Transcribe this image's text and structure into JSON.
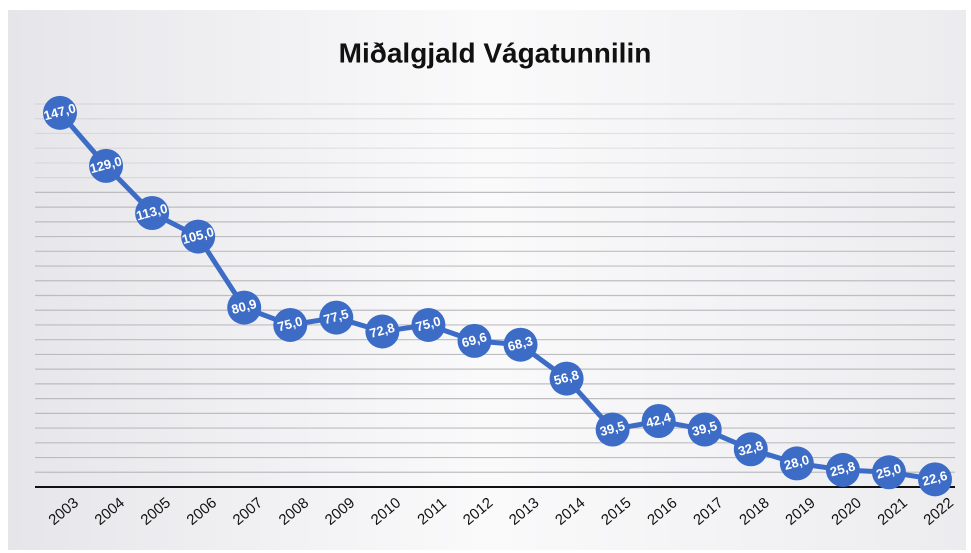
{
  "chart_data": {
    "type": "line",
    "title": "Miðalgjald Vágatunnilin",
    "categories": [
      "2003",
      "2004",
      "2005",
      "2006",
      "2007",
      "2008",
      "2009",
      "2010",
      "2011",
      "2012",
      "2013",
      "2014",
      "2015",
      "2016",
      "2017",
      "2018",
      "2019",
      "2020",
      "2021",
      "2022"
    ],
    "series": [
      {
        "name": null,
        "color": "#3d6cc6",
        "values": [
          147.0,
          129.0,
          113.0,
          105.0,
          80.9,
          75.0,
          77.5,
          72.8,
          75.0,
          69.6,
          68.3,
          56.8,
          39.5,
          42.4,
          39.5,
          32.8,
          28.0,
          25.8,
          25.0,
          22.6
        ],
        "value_labels": [
          "147,0",
          "129,0",
          "113,0",
          "105,0",
          "80,9",
          "75,0",
          "77,5",
          "72,8",
          "75,0",
          "69,6",
          "68,3",
          "56,8",
          "39,5",
          "42,4",
          "39,5",
          "32,8",
          "28,0",
          "25,8",
          "25,0",
          "22,6"
        ]
      }
    ],
    "ylim": [
      20,
      150
    ],
    "yticks": [
      20,
      25,
      30,
      35,
      40,
      45,
      50,
      55,
      60,
      65,
      70,
      75,
      80,
      85,
      90,
      95,
      100,
      105,
      110,
      115,
      120,
      125,
      130,
      135,
      140,
      145,
      150
    ],
    "grid": true
  }
}
